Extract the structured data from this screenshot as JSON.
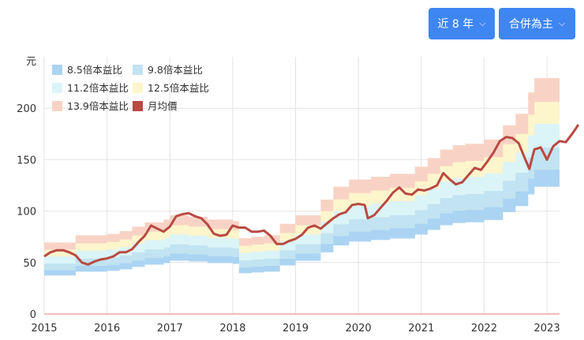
{
  "controls": {
    "range_label": "近 8 年",
    "basis_label": "合併為主"
  },
  "chart_data": {
    "type": "area",
    "title": "",
    "ylabel": "元",
    "xlabel": "",
    "ylim": [
      0,
      250
    ],
    "xlim": [
      2015.0,
      2023.2
    ],
    "y_ticks": [
      0,
      50,
      100,
      150,
      200
    ],
    "x_ticks": [
      "2015",
      "2016",
      "2017",
      "2018",
      "2019",
      "2020",
      "2021",
      "2022",
      "2023"
    ],
    "grid": true,
    "legend_position": "top-left",
    "eps": [
      [
        2015.0,
        5.0
      ],
      [
        2015.5,
        5.5
      ],
      [
        2016.0,
        5.6
      ],
      [
        2016.2,
        5.8
      ],
      [
        2016.4,
        6.1
      ],
      [
        2016.6,
        6.4
      ],
      [
        2016.9,
        6.6
      ],
      [
        2017.0,
        6.9
      ],
      [
        2017.3,
        6.8
      ],
      [
        2017.6,
        6.6
      ],
      [
        2018.0,
        6.5
      ],
      [
        2018.1,
        5.3
      ],
      [
        2018.3,
        5.4
      ],
      [
        2018.5,
        5.5
      ],
      [
        2018.75,
        6.3
      ],
      [
        2019.0,
        6.9
      ],
      [
        2019.4,
        8.0
      ],
      [
        2019.6,
        8.9
      ],
      [
        2019.85,
        9.4
      ],
      [
        2020.2,
        9.6
      ],
      [
        2020.5,
        9.8
      ],
      [
        2020.9,
        10.3
      ],
      [
        2021.1,
        10.9
      ],
      [
        2021.3,
        11.5
      ],
      [
        2021.5,
        11.8
      ],
      [
        2021.7,
        11.9
      ],
      [
        2022.0,
        12.2
      ],
      [
        2022.3,
        13.2
      ],
      [
        2022.5,
        14.0
      ],
      [
        2022.7,
        15.5
      ],
      [
        2022.8,
        16.5
      ],
      [
        2023.2,
        16.7
      ]
    ],
    "series": [
      {
        "name": "8.5倍本益比",
        "type": "band",
        "color": "#abd4f3"
      },
      {
        "name": "9.8倍本益比",
        "type": "band",
        "color": "#c2e3f1"
      },
      {
        "name": "11.2倍本益比",
        "type": "band",
        "color": "#dbf4f7"
      },
      {
        "name": "12.5倍本益比",
        "type": "band",
        "color": "#fdf5cc"
      },
      {
        "name": "13.9倍本益比",
        "type": "band",
        "color": "#f8d3c5"
      },
      {
        "name": "月均價",
        "type": "line",
        "color": "#b84a42",
        "points": [
          [
            2015.0,
            56
          ],
          [
            2015.1,
            60
          ],
          [
            2015.2,
            62
          ],
          [
            2015.3,
            62
          ],
          [
            2015.4,
            60
          ],
          [
            2015.5,
            57
          ],
          [
            2015.6,
            50
          ],
          [
            2015.7,
            48
          ],
          [
            2015.8,
            51
          ],
          [
            2015.9,
            53
          ],
          [
            2016.0,
            54
          ],
          [
            2016.1,
            56
          ],
          [
            2016.2,
            60
          ],
          [
            2016.3,
            60
          ],
          [
            2016.4,
            63
          ],
          [
            2016.5,
            70
          ],
          [
            2016.6,
            76
          ],
          [
            2016.7,
            86
          ],
          [
            2016.8,
            83
          ],
          [
            2016.9,
            80
          ],
          [
            2017.0,
            85
          ],
          [
            2017.1,
            95
          ],
          [
            2017.2,
            97
          ],
          [
            2017.3,
            98
          ],
          [
            2017.4,
            95
          ],
          [
            2017.5,
            93
          ],
          [
            2017.6,
            87
          ],
          [
            2017.7,
            78
          ],
          [
            2017.8,
            76
          ],
          [
            2017.9,
            77
          ],
          [
            2018.0,
            86
          ],
          [
            2018.1,
            84
          ],
          [
            2018.2,
            84
          ],
          [
            2018.3,
            80
          ],
          [
            2018.4,
            80
          ],
          [
            2018.5,
            81
          ],
          [
            2018.6,
            76
          ],
          [
            2018.7,
            68
          ],
          [
            2018.8,
            68
          ],
          [
            2018.9,
            71
          ],
          [
            2019.0,
            73
          ],
          [
            2019.1,
            77
          ],
          [
            2019.2,
            84
          ],
          [
            2019.3,
            86
          ],
          [
            2019.4,
            83
          ],
          [
            2019.5,
            88
          ],
          [
            2019.6,
            93
          ],
          [
            2019.7,
            97
          ],
          [
            2019.8,
            99
          ],
          [
            2019.9,
            106
          ],
          [
            2020.0,
            107
          ],
          [
            2020.1,
            106
          ],
          [
            2020.15,
            93
          ],
          [
            2020.25,
            96
          ],
          [
            2020.35,
            103
          ],
          [
            2020.45,
            110
          ],
          [
            2020.55,
            118
          ],
          [
            2020.65,
            123
          ],
          [
            2020.75,
            117
          ],
          [
            2020.85,
            116
          ],
          [
            2020.95,
            121
          ],
          [
            2021.05,
            120
          ],
          [
            2021.15,
            122
          ],
          [
            2021.25,
            125
          ],
          [
            2021.35,
            137
          ],
          [
            2021.45,
            131
          ],
          [
            2021.55,
            126
          ],
          [
            2021.65,
            128
          ],
          [
            2021.75,
            135
          ],
          [
            2021.85,
            142
          ],
          [
            2021.95,
            140
          ],
          [
            2022.05,
            148
          ],
          [
            2022.15,
            157
          ],
          [
            2022.25,
            168
          ],
          [
            2022.35,
            172
          ],
          [
            2022.45,
            171
          ],
          [
            2022.55,
            166
          ],
          [
            2022.65,
            151
          ],
          [
            2022.72,
            141
          ],
          [
            2022.8,
            160
          ],
          [
            2022.9,
            162
          ],
          [
            2023.0,
            150
          ],
          [
            2023.1,
            163
          ],
          [
            2023.2,
            168
          ],
          [
            2023.3,
            167
          ],
          [
            2023.4,
            175
          ],
          [
            2023.5,
            184
          ]
        ]
      }
    ]
  }
}
